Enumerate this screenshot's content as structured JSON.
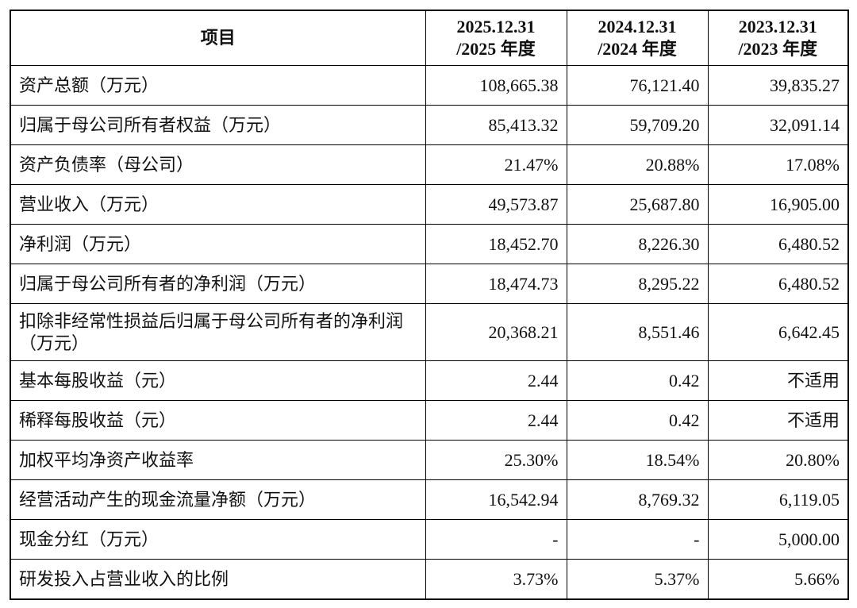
{
  "table": {
    "header": {
      "item": "项目",
      "columns": [
        {
          "date": "2025.12.31",
          "period": "/2025 年度"
        },
        {
          "date": "2024.12.31",
          "period": "/2024 年度"
        },
        {
          "date": "2023.12.31",
          "period": "/2023 年度"
        }
      ]
    },
    "rows": [
      [
        "资产总额（万元）",
        "108,665.38",
        "76,121.40",
        "39,835.27"
      ],
      [
        "归属于母公司所有者权益（万元）",
        "85,413.32",
        "59,709.20",
        "32,091.14"
      ],
      [
        "资产负债率（母公司）",
        "21.47%",
        "20.88%",
        "17.08%"
      ],
      [
        "营业收入（万元）",
        "49,573.87",
        "25,687.80",
        "16,905.00"
      ],
      [
        "净利润（万元）",
        "18,452.70",
        "8,226.30",
        "6,480.52"
      ],
      [
        "归属于母公司所有者的净利润（万元）",
        "18,474.73",
        "8,295.22",
        "6,480.52"
      ],
      [
        "扣除非经常性损益后归属于母公司所有者的净利润（万元）",
        "20,368.21",
        "8,551.46",
        "6,642.45"
      ],
      [
        "基本每股收益（元）",
        "2.44",
        "0.42",
        "不适用"
      ],
      [
        "稀释每股收益（元）",
        "2.44",
        "0.42",
        "不适用"
      ],
      [
        "加权平均净资产收益率",
        "25.30%",
        "18.54%",
        "20.80%"
      ],
      [
        "经营活动产生的现金流量净额（万元）",
        "16,542.94",
        "8,769.32",
        "6,119.05"
      ],
      [
        "现金分红（万元）",
        "-",
        "-",
        "5,000.00"
      ],
      [
        "研发投入占营业收入的比例",
        "3.73%",
        "5.37%",
        "5.66%"
      ]
    ]
  }
}
